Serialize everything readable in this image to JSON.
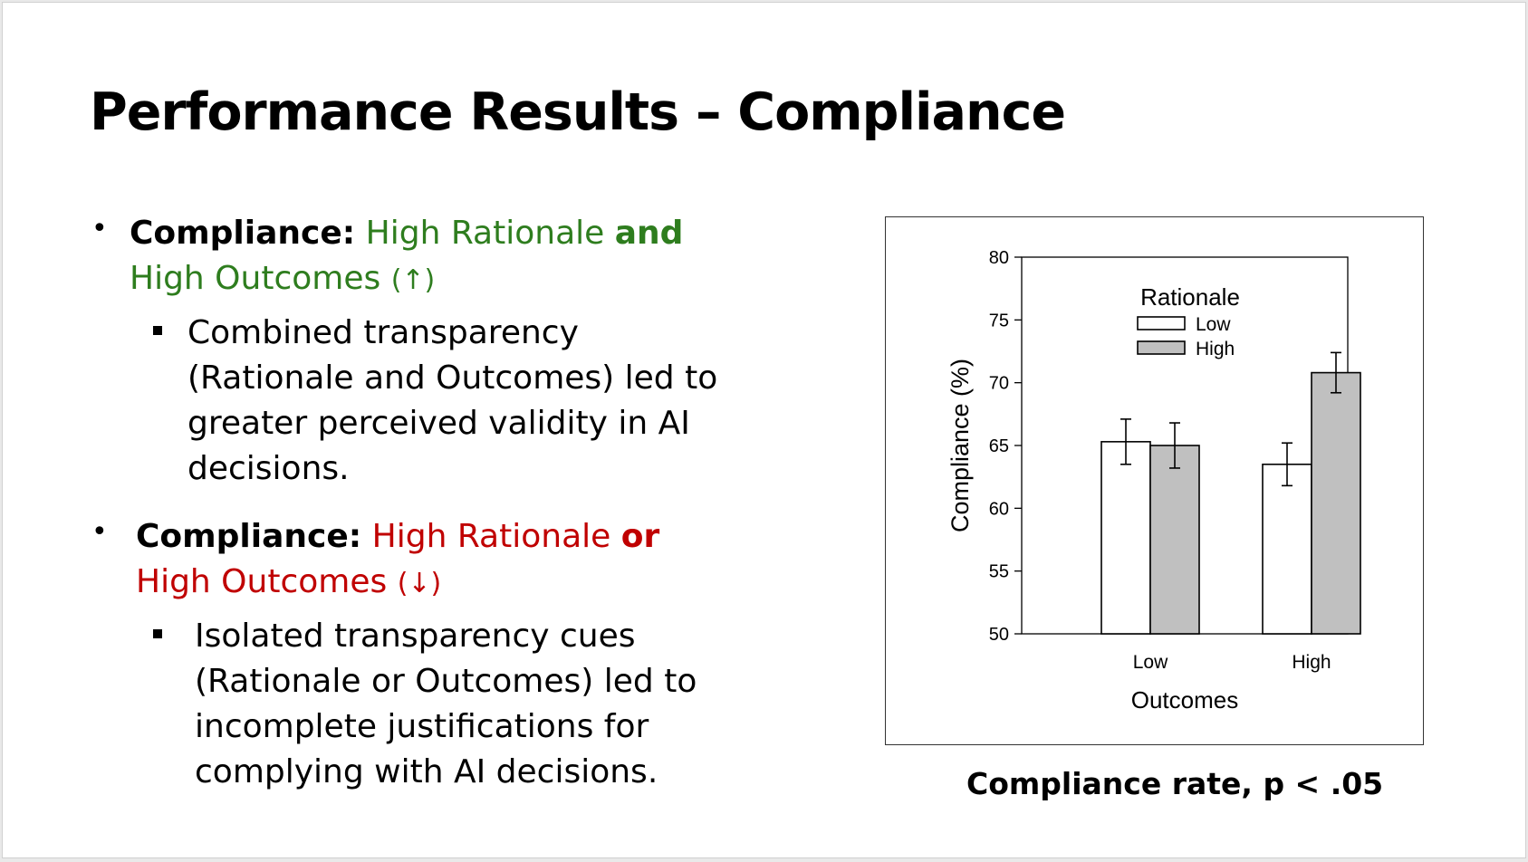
{
  "title": "Performance Results – Compliance",
  "bullets": {
    "b1": {
      "label": "Compliance:",
      "green1": "High Rationale ",
      "and": "and",
      "green2": " High Outcomes ",
      "arrow": "(↑)",
      "sub": "Combined transparency (Rationale and Outcomes) led to greater perceived validity in AI decisions."
    },
    "b2": {
      "label": "Compliance:",
      "red1": "High Rationale ",
      "or": "or",
      "red2": " High Outcomes ",
      "arrow": "(↓)",
      "sub": "Isolated transparency cues (Rationale or Outcomes) led to incomplete justifications for complying with AI decisions."
    }
  },
  "caption": "Compliance rate, p < .05",
  "colors": {
    "green": "#2e7d1e",
    "red": "#c00000",
    "bar_low": "#ffffff",
    "bar_high": "#c0c0c0"
  },
  "chart_data": {
    "type": "bar",
    "categories": [
      "Low",
      "High"
    ],
    "series": [
      {
        "name": "Low",
        "values": [
          65.3,
          63.5
        ],
        "errors": [
          1.8,
          1.7
        ]
      },
      {
        "name": "High",
        "values": [
          65.0,
          70.8
        ],
        "errors": [
          1.8,
          1.6
        ]
      }
    ],
    "xlabel": "Outcomes",
    "ylabel": "Compliance (%)",
    "legend_title": "Rationale",
    "legend_position": "top-right",
    "ylim": [
      50,
      80
    ],
    "yticks": [
      50,
      55,
      60,
      65,
      70,
      75,
      80
    ],
    "grid": false
  }
}
